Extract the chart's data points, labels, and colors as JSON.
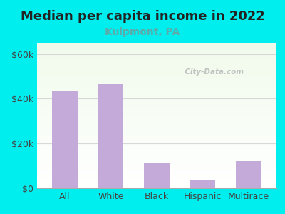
{
  "title": "Median per capita income in 2022",
  "subtitle": "Kulpmont, PA",
  "categories": [
    "All",
    "White",
    "Black",
    "Hispanic",
    "Multirace"
  ],
  "values": [
    43500,
    46500,
    11500,
    3500,
    12000
  ],
  "bar_color": "#c4aad8",
  "title_fontsize": 13,
  "subtitle_fontsize": 10,
  "title_color": "#222222",
  "subtitle_color": "#5aabaa",
  "tick_label_fontsize": 9,
  "ytick_labels": [
    "$0",
    "$20k",
    "$40k",
    "$60k"
  ],
  "ytick_values": [
    0,
    20000,
    40000,
    60000
  ],
  "ylim": [
    0,
    65000
  ],
  "bg_outer": "#00eeee",
  "watermark": "  City-Data.com",
  "grid_color": "#d8d8d8"
}
